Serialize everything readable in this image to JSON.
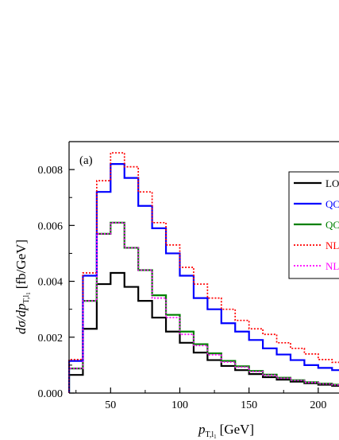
{
  "chart_data": {
    "type": "step-histogram",
    "panel_label": "(a)",
    "xlabel_main": "p",
    "xlabel_sub": "T,l",
    "xlabel_sub2": "1",
    "xlabel_unit": "[GeV]",
    "ylabel_main": "dσ/dp",
    "ylabel_sub": "T,l",
    "ylabel_sub2": "1",
    "ylabel_unit": "[fb/GeV]",
    "xlim": [
      20,
      215
    ],
    "ylim": [
      0,
      0.009
    ],
    "xticks": [
      50,
      100,
      150,
      200
    ],
    "xtick_labels": [
      "50",
      "100",
      "150",
      "200"
    ],
    "yticks": [
      0,
      0.002,
      0.004,
      0.006,
      0.008
    ],
    "ytick_labels": [
      "0.000",
      "0.002",
      "0.004",
      "0.006",
      "0.008"
    ],
    "grid": false,
    "legend_position": "right",
    "bin_edges": [
      20,
      30,
      40,
      50,
      60,
      70,
      80,
      90,
      100,
      110,
      120,
      130,
      140,
      150,
      160,
      170,
      180,
      190,
      200,
      210,
      220
    ],
    "series": [
      {
        "name": "LO",
        "legend_text": "LO",
        "color": "#000000",
        "dash": "solid",
        "values": [
          0.00065,
          0.0023,
          0.0039,
          0.0043,
          0.0038,
          0.0033,
          0.0027,
          0.0022,
          0.0018,
          0.00145,
          0.00118,
          0.00097,
          0.00082,
          0.00068,
          0.00057,
          0.00048,
          0.00041,
          0.00035,
          0.0003,
          0.00026
        ]
      },
      {
        "name": "QCD NLO (green)",
        "legend_text": "QC",
        "color": "#008000",
        "dash": "solid",
        "values": [
          0.00088,
          0.0033,
          0.0057,
          0.0061,
          0.0052,
          0.0044,
          0.0035,
          0.0028,
          0.0022,
          0.00175,
          0.00142,
          0.00115,
          0.00096,
          0.00079,
          0.00066,
          0.00055,
          0.00046,
          0.00039,
          0.00034,
          0.0003
        ]
      },
      {
        "name": "QCD NLO (blue)",
        "legend_text": "QC",
        "color": "#0000ff",
        "dash": "solid",
        "values": [
          0.00115,
          0.0042,
          0.0072,
          0.0082,
          0.0077,
          0.0067,
          0.0059,
          0.005,
          0.0042,
          0.0034,
          0.003,
          0.0025,
          0.0022,
          0.0019,
          0.0016,
          0.00138,
          0.00118,
          0.001,
          0.0009,
          0.00082
        ]
      },
      {
        "name": "NLO (red dotted)",
        "legend_text": "NL",
        "color": "#ff0000",
        "dash": "dotted",
        "values": [
          0.0012,
          0.0043,
          0.0076,
          0.0086,
          0.0081,
          0.0072,
          0.0061,
          0.0053,
          0.0045,
          0.0039,
          0.0034,
          0.003,
          0.0026,
          0.0023,
          0.0021,
          0.0018,
          0.0016,
          0.0014,
          0.0012,
          0.0011
        ]
      },
      {
        "name": "NLO (magenta dotted)",
        "legend_text": "NL",
        "color": "#ff00ff",
        "dash": "dotted",
        "values": [
          0.00088,
          0.0033,
          0.0057,
          0.0061,
          0.0052,
          0.0044,
          0.0034,
          0.0027,
          0.0021,
          0.0017,
          0.00137,
          0.00111,
          0.00093,
          0.00077,
          0.00064,
          0.00053,
          0.00045,
          0.00038,
          0.00033,
          0.00029
        ]
      }
    ]
  }
}
